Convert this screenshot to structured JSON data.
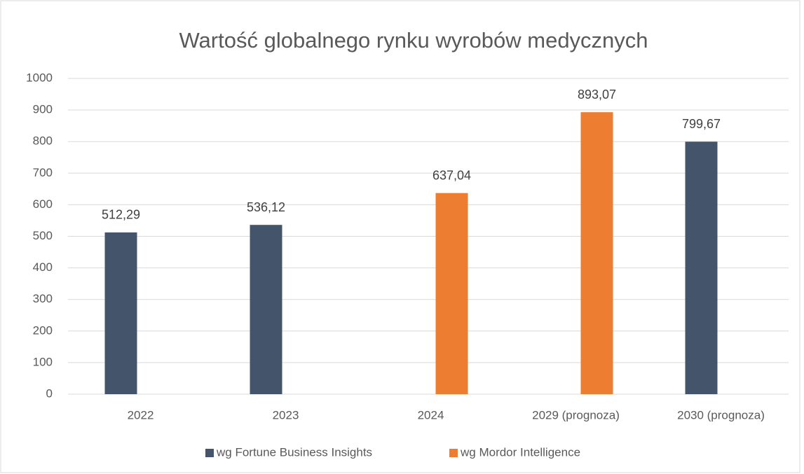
{
  "chart_data": {
    "type": "bar",
    "title": "Wartość globalnego rynku wyrobów medycznych",
    "categories": [
      "2022",
      "2023",
      "2024",
      "2029 (prognoza)",
      "2030 (prognoza)"
    ],
    "series": [
      {
        "name": "wg Fortune Business Insights",
        "color": "#44546a",
        "values": [
          512.29,
          536.12,
          null,
          null,
          799.67
        ],
        "value_labels": [
          "512,29",
          "536,12",
          null,
          null,
          "799,67"
        ]
      },
      {
        "name": "wg Mordor Intelligence",
        "color": "#ed7d31",
        "values": [
          null,
          null,
          637.04,
          893.07,
          null
        ],
        "value_labels": [
          null,
          null,
          "637,04",
          "893,07",
          null
        ]
      }
    ],
    "ylim": [
      0,
      1000
    ],
    "yticks": [
      0,
      100,
      200,
      300,
      400,
      500,
      600,
      700,
      800,
      900,
      1000
    ],
    "grid": true,
    "legend": "bottom"
  }
}
